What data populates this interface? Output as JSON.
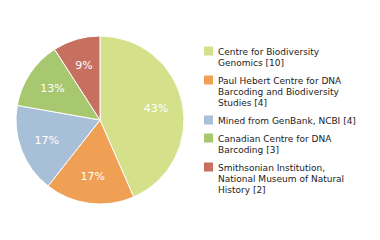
{
  "chart_data": {
    "type": "pie",
    "labels": [
      "Centre for Biodiversity\nGenomics [10]",
      "Paul Hebert Centre for DNA\nBarcoding and Biodiversity\nStudies [4]",
      "Mined from GenBank, NCBI [4]",
      "Canadian Centre for DNA\nBarcoding [3]",
      "Smithsonian Institution,\nNational Museum of Natural\nHistory [2]"
    ],
    "values": [
      43,
      17,
      17,
      13,
      9
    ],
    "value_labels": [
      "43%",
      "17%",
      "17%",
      "13%",
      "9%"
    ],
    "data_labels": true,
    "colors": [
      "#d4e08a",
      "#f0a055",
      "#a8bfd8",
      "#a8c870",
      "#c87060"
    ],
    "legend": "right"
  }
}
